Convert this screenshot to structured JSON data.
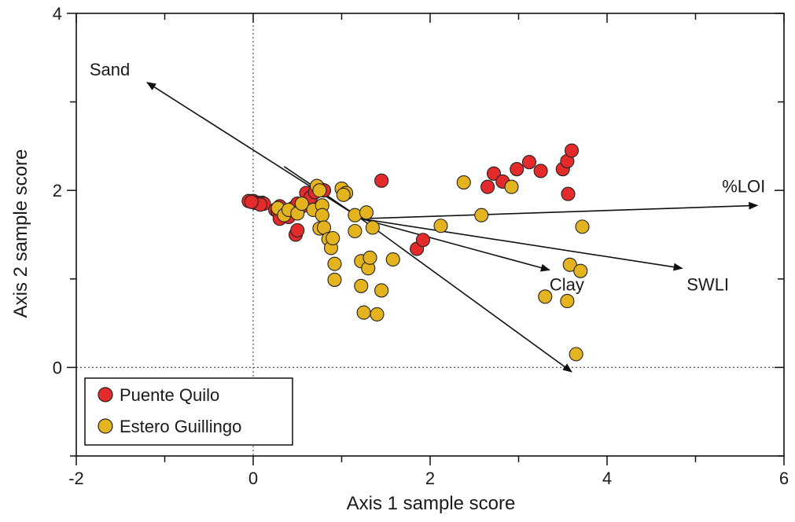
{
  "chart_data": {
    "type": "scatter",
    "xlabel": "Axis 1 sample score",
    "ylabel": "Axis 2 sample score",
    "xlim": [
      -2,
      6
    ],
    "ylim": [
      -1,
      4
    ],
    "x_ticks": [
      -2,
      0,
      2,
      4,
      6
    ],
    "y_ticks": [
      0,
      2,
      4
    ],
    "x_tick_labels": [
      "-2",
      "0",
      "2",
      "4",
      "6"
    ],
    "y_tick_labels": [
      "0",
      "2",
      "4"
    ],
    "zero_lines": true,
    "legend_position": "bottom-left",
    "series": [
      {
        "name": "Puente Quilo",
        "color": "#e32b2b",
        "points": [
          [
            -0.05,
            1.88
          ],
          [
            0.0,
            1.88
          ],
          [
            0.05,
            1.86
          ],
          [
            0.1,
            1.86
          ],
          [
            0.12,
            1.85
          ],
          [
            0.02,
            1.86
          ],
          [
            0.08,
            1.84
          ],
          [
            -0.02,
            1.87
          ],
          [
            0.25,
            1.78
          ],
          [
            0.28,
            1.76
          ],
          [
            0.3,
            1.82
          ],
          [
            0.32,
            1.72
          ],
          [
            0.3,
            1.68
          ],
          [
            0.35,
            1.75
          ],
          [
            0.38,
            1.74
          ],
          [
            0.4,
            1.7
          ],
          [
            0.45,
            1.8
          ],
          [
            0.5,
            1.85
          ],
          [
            0.55,
            1.82
          ],
          [
            0.6,
            1.97
          ],
          [
            0.65,
            1.92
          ],
          [
            0.7,
            1.98
          ],
          [
            0.75,
            2.02
          ],
          [
            0.8,
            2.0
          ],
          [
            0.48,
            1.5
          ],
          [
            0.5,
            1.55
          ],
          [
            1.45,
            2.11
          ],
          [
            1.85,
            1.34
          ],
          [
            1.92,
            1.44
          ],
          [
            2.65,
            2.04
          ],
          [
            2.72,
            2.19
          ],
          [
            2.82,
            2.1
          ],
          [
            2.98,
            2.24
          ],
          [
            3.12,
            2.32
          ],
          [
            3.25,
            2.22
          ],
          [
            3.5,
            2.24
          ],
          [
            3.55,
            2.33
          ],
          [
            3.6,
            2.45
          ],
          [
            3.56,
            1.96
          ]
        ]
      },
      {
        "name": "Estero Guillingo",
        "color": "#e4b320",
        "points": [
          [
            0.28,
            1.8
          ],
          [
            0.35,
            1.72
          ],
          [
            0.4,
            1.78
          ],
          [
            0.5,
            1.74
          ],
          [
            0.55,
            1.85
          ],
          [
            0.68,
            1.78
          ],
          [
            0.72,
            2.05
          ],
          [
            0.75,
            2.0
          ],
          [
            0.78,
            1.83
          ],
          [
            0.78,
            1.72
          ],
          [
            0.75,
            1.57
          ],
          [
            0.8,
            1.58
          ],
          [
            0.85,
            1.45
          ],
          [
            0.88,
            1.35
          ],
          [
            0.9,
            1.46
          ],
          [
            0.92,
            1.17
          ],
          [
            0.92,
            0.99
          ],
          [
            1.0,
            2.02
          ],
          [
            1.05,
            1.97
          ],
          [
            1.02,
            1.95
          ],
          [
            1.15,
            1.72
          ],
          [
            1.15,
            1.54
          ],
          [
            1.22,
            1.2
          ],
          [
            1.22,
            0.92
          ],
          [
            1.28,
            1.75
          ],
          [
            1.3,
            1.12
          ],
          [
            1.32,
            1.24
          ],
          [
            1.35,
            1.58
          ],
          [
            1.25,
            0.62
          ],
          [
            1.4,
            0.6
          ],
          [
            1.45,
            0.87
          ],
          [
            1.58,
            1.22
          ],
          [
            2.12,
            1.6
          ],
          [
            2.38,
            2.09
          ],
          [
            2.58,
            1.72
          ],
          [
            2.92,
            2.04
          ],
          [
            3.3,
            0.8
          ],
          [
            3.55,
            0.75
          ],
          [
            3.58,
            1.16
          ],
          [
            3.65,
            0.15
          ],
          [
            3.7,
            1.09
          ],
          [
            3.72,
            1.59
          ]
        ]
      }
    ],
    "vectors": [
      {
        "label": "Sand",
        "from": [
          1.22,
          1.68
        ],
        "to": [
          -1.2,
          3.22
        ],
        "label_pos": [
          -1.85,
          3.3
        ]
      },
      {
        "label": "%LOI",
        "from": [
          1.22,
          1.68
        ],
        "to": [
          5.7,
          1.83
        ],
        "label_pos": [
          5.3,
          1.98
        ]
      },
      {
        "label": "SWLI",
        "from": [
          1.22,
          1.68
        ],
        "to": [
          4.85,
          1.12
        ],
        "label_pos": [
          4.9,
          0.87
        ]
      },
      {
        "label": "Clay",
        "from": [
          1.22,
          1.68
        ],
        "to": [
          3.35,
          1.1
        ],
        "label_pos": [
          3.35,
          0.87
        ]
      },
      {
        "label": "",
        "from": [
          1.22,
          1.68
        ],
        "to": [
          3.6,
          -0.05
        ],
        "label_pos": [
          3.6,
          -0.05
        ]
      },
      {
        "label": "",
        "from": [
          0.35,
          2.27
        ],
        "to": [
          1.22,
          1.68
        ],
        "label_pos": [
          0.35,
          2.27
        ]
      }
    ]
  }
}
